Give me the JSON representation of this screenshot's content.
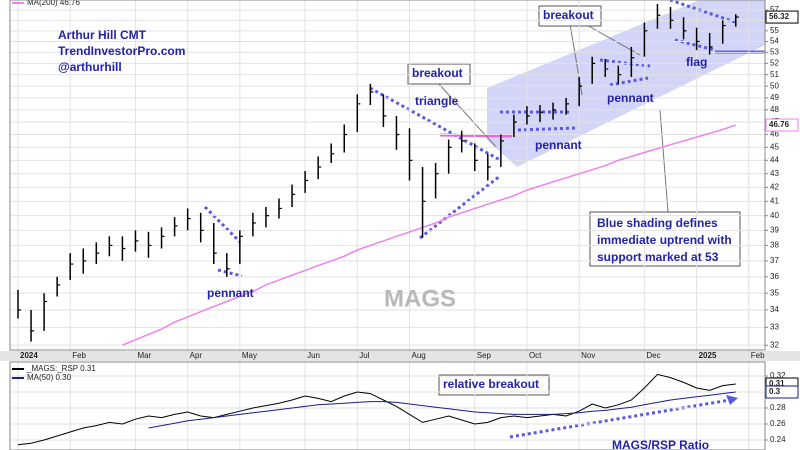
{
  "chart_data": [
    {
      "type": "ohlc",
      "categories": [
        "2024",
        null,
        null,
        null,
        "Feb",
        null,
        null,
        null,
        null,
        "Mar",
        null,
        null,
        null,
        "Apr",
        null,
        null,
        null,
        "May",
        null,
        null,
        null,
        null,
        "Jun",
        null,
        null,
        null,
        "Jul",
        null,
        null,
        null,
        "Aug",
        null,
        null,
        null,
        null,
        "Sep",
        null,
        null,
        null,
        "Oct",
        null,
        null,
        null,
        "Nov",
        null,
        null,
        null,
        null,
        "Dec",
        null,
        null,
        null,
        "2025",
        null,
        null,
        null,
        "Feb"
      ],
      "high": [
        35.2,
        34.0,
        35.0,
        36.0,
        37.5,
        37.8,
        38.2,
        38.6,
        38.6,
        39.0,
        38.9,
        39.2,
        39.9,
        40.5,
        40.2,
        39.5,
        37.5,
        39.0,
        40.2,
        40.6,
        41.2,
        42.2,
        43.2,
        44.3,
        45.3,
        46.8,
        49.3,
        50.2,
        49.3,
        47.5,
        46.5,
        43.5,
        43.8,
        45.6,
        46.3,
        45.3,
        44.5,
        46.0,
        47.6,
        48.3,
        48.4,
        48.6,
        49.0,
        50.8,
        52.6,
        52.4,
        51.8,
        53.5,
        55.8,
        57.6,
        57.3,
        56.3,
        55.3,
        54.8,
        56.0,
        56.6,
        null
      ],
      "low": [
        33.5,
        32.2,
        32.8,
        34.8,
        35.8,
        36.2,
        36.8,
        37.3,
        37.0,
        37.6,
        37.2,
        37.8,
        38.6,
        39.0,
        38.2,
        36.8,
        36.0,
        36.8,
        38.6,
        39.2,
        39.8,
        40.6,
        41.6,
        42.6,
        43.8,
        44.6,
        46.2,
        48.4,
        46.6,
        44.8,
        42.5,
        38.5,
        41.2,
        43.0,
        44.6,
        43.2,
        42.5,
        43.5,
        45.8,
        46.8,
        47.0,
        47.2,
        47.6,
        48.3,
        50.2,
        50.8,
        50.2,
        50.8,
        52.6,
        55.2,
        55.2,
        54.2,
        53.2,
        52.8,
        53.8,
        55.4,
        null
      ],
      "close": [
        34.0,
        32.8,
        34.5,
        35.5,
        36.8,
        37.0,
        37.5,
        38.0,
        37.8,
        38.3,
        38.0,
        38.6,
        39.3,
        39.8,
        39.0,
        37.5,
        36.5,
        38.6,
        39.5,
        40.0,
        40.5,
        41.5,
        42.5,
        43.5,
        44.5,
        46.0,
        48.5,
        49.5,
        47.5,
        46.0,
        44.0,
        41.0,
        43.0,
        45.0,
        45.5,
        44.0,
        43.5,
        45.5,
        47.0,
        47.5,
        47.8,
        48.0,
        48.5,
        50.0,
        52.0,
        51.5,
        51.0,
        52.5,
        55.0,
        56.5,
        56.0,
        55.0,
        54.0,
        53.5,
        55.5,
        56.32,
        null
      ],
      "color": "#000000",
      "overlays": [
        {
          "name": "MA(200) 46.76",
          "color": "#ee82ee",
          "values": [
            null,
            null,
            null,
            null,
            null,
            null,
            null,
            null,
            32.0,
            32.3,
            32.6,
            32.9,
            33.3,
            33.6,
            33.9,
            34.2,
            34.5,
            34.8,
            35.1,
            35.5,
            35.8,
            36.1,
            36.4,
            36.7,
            37.0,
            37.3,
            37.7,
            38.0,
            38.3,
            38.6,
            38.9,
            39.2,
            39.5,
            39.9,
            40.2,
            40.5,
            40.8,
            41.1,
            41.4,
            41.8,
            42.1,
            42.4,
            42.7,
            43.0,
            43.3,
            43.6,
            44.0,
            44.3,
            44.6,
            44.9,
            45.2,
            45.5,
            45.8,
            46.1,
            46.4,
            46.76,
            null
          ]
        }
      ],
      "ylim": [
        31.9,
        58
      ],
      "yticks": [
        32,
        33,
        34,
        35,
        36,
        37,
        38,
        39,
        40,
        41,
        42,
        43,
        44,
        45,
        46,
        47,
        48,
        49,
        50,
        51,
        52,
        53,
        54,
        55,
        56,
        57
      ],
      "log_scale": true,
      "grid": true,
      "watermark": "MAGS",
      "annotations": [
        "Arthur Hill CMT",
        "TrendInvestorPro.com",
        "@arthurhill",
        "pennant",
        "triangle",
        "breakout",
        "breakout",
        "pennant",
        "pennant",
        "flag",
        "Blue shading defines",
        "immediate uptrend with",
        "support marked at 53"
      ]
    },
    {
      "type": "line",
      "series": [
        {
          "name": "_MAGS:_RSP 0.31",
          "color": "#000000",
          "values": [
            0.234,
            0.236,
            0.24,
            0.245,
            0.25,
            0.255,
            0.258,
            0.262,
            0.26,
            0.266,
            0.27,
            0.268,
            0.272,
            0.275,
            0.27,
            0.268,
            0.272,
            0.276,
            0.28,
            0.283,
            0.286,
            0.29,
            0.295,
            0.292,
            0.288,
            0.295,
            0.3,
            0.298,
            0.29,
            0.282,
            0.272,
            0.262,
            0.266,
            0.27,
            0.265,
            0.26,
            0.262,
            0.268,
            0.27,
            0.268,
            0.27,
            0.272,
            0.27,
            0.276,
            0.285,
            0.28,
            0.284,
            0.29,
            0.305,
            0.322,
            0.318,
            0.312,
            0.305,
            0.302,
            0.308,
            0.31,
            null
          ]
        },
        {
          "name": "MA(50) 0.30",
          "color": "#1c1c8c",
          "values": [
            null,
            null,
            null,
            null,
            null,
            null,
            null,
            null,
            null,
            null,
            0.255,
            0.258,
            0.261,
            0.264,
            0.266,
            0.268,
            0.27,
            0.272,
            0.274,
            0.276,
            0.278,
            0.28,
            0.282,
            0.284,
            0.285,
            0.286,
            0.287,
            0.288,
            0.288,
            0.287,
            0.285,
            0.283,
            0.281,
            0.279,
            0.277,
            0.275,
            0.274,
            0.273,
            0.272,
            0.272,
            0.272,
            0.272,
            0.273,
            0.274,
            0.276,
            0.277,
            0.279,
            0.281,
            0.284,
            0.287,
            0.29,
            0.292,
            0.294,
            0.296,
            0.298,
            0.3,
            null
          ]
        }
      ],
      "ylim": [
        0.2275,
        0.3375
      ],
      "yticks": [
        0.24,
        0.26,
        0.28,
        0.3,
        0.32
      ],
      "grid": true,
      "annotations": [
        "relative breakout",
        "MAGS/RSP Ratio"
      ]
    }
  ]
}
